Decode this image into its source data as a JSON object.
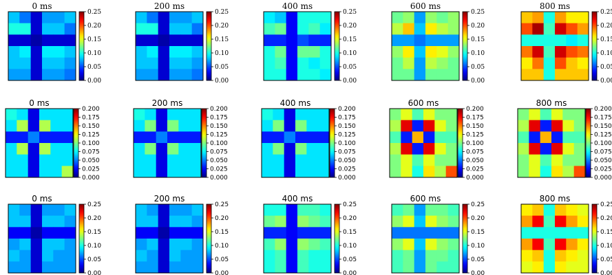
{
  "colormap": "jet",
  "rows": [
    {
      "font": "serif",
      "colorbar_ticks": [
        "0.00",
        "0.05",
        "0.10",
        "0.15",
        "0.20",
        "0.25"
      ],
      "vmax": 0.25,
      "panels": [
        {
          "title": "0 ms",
          "chart_data": {
            "type": "heatmap",
            "grid": [
              [
                0.08,
                0.06,
                0.02,
                0.07,
                0.07,
                0.08
              ],
              [
                0.1,
                0.1,
                0.02,
                0.08,
                0.08,
                0.06
              ],
              [
                0.02,
                0.02,
                0.01,
                0.02,
                0.02,
                0.02
              ],
              [
                0.08,
                0.09,
                0.02,
                0.09,
                0.09,
                0.08
              ],
              [
                0.08,
                0.08,
                0.02,
                0.08,
                0.08,
                0.07
              ],
              [
                0.07,
                0.07,
                0.02,
                0.07,
                0.07,
                0.06
              ]
            ],
            "ylim": [
              0,
              0.25
            ]
          }
        },
        {
          "title": "200 ms",
          "chart_data": {
            "type": "heatmap",
            "grid": [
              [
                0.08,
                0.06,
                0.02,
                0.07,
                0.07,
                0.08
              ],
              [
                0.1,
                0.1,
                0.02,
                0.08,
                0.08,
                0.06
              ],
              [
                0.02,
                0.02,
                0.01,
                0.02,
                0.02,
                0.02
              ],
              [
                0.08,
                0.09,
                0.02,
                0.09,
                0.09,
                0.08
              ],
              [
                0.08,
                0.08,
                0.02,
                0.08,
                0.08,
                0.07
              ],
              [
                0.07,
                0.07,
                0.02,
                0.07,
                0.07,
                0.06
              ]
            ],
            "ylim": [
              0,
              0.25
            ]
          }
        },
        {
          "title": "400 ms",
          "chart_data": {
            "type": "heatmap",
            "grid": [
              [
                0.09,
                0.08,
                0.03,
                0.1,
                0.1,
                0.1
              ],
              [
                0.11,
                0.12,
                0.03,
                0.1,
                0.11,
                0.09
              ],
              [
                0.04,
                0.04,
                0.03,
                0.05,
                0.04,
                0.04
              ],
              [
                0.1,
                0.12,
                0.03,
                0.12,
                0.12,
                0.1
              ],
              [
                0.1,
                0.11,
                0.03,
                0.1,
                0.09,
                0.1
              ],
              [
                0.1,
                0.1,
                0.03,
                0.1,
                0.1,
                0.09
              ]
            ],
            "ylim": [
              0,
              0.25
            ]
          }
        },
        {
          "title": "600 ms",
          "chart_data": {
            "type": "heatmap",
            "grid": [
              [
                0.12,
                0.13,
                0.07,
                0.13,
                0.12,
                0.13
              ],
              [
                0.14,
                0.17,
                0.08,
                0.16,
                0.14,
                0.13
              ],
              [
                0.07,
                0.07,
                0.06,
                0.07,
                0.07,
                0.07
              ],
              [
                0.13,
                0.16,
                0.08,
                0.16,
                0.15,
                0.13
              ],
              [
                0.12,
                0.14,
                0.07,
                0.14,
                0.13,
                0.12
              ],
              [
                0.12,
                0.12,
                0.07,
                0.12,
                0.12,
                0.12
              ]
            ],
            "ylim": [
              0,
              0.25
            ]
          }
        },
        {
          "title": "800 ms",
          "chart_data": {
            "type": "heatmap",
            "grid": [
              [
                0.17,
                0.18,
                0.1,
                0.18,
                0.16,
                0.16
              ],
              [
                0.2,
                0.24,
                0.11,
                0.23,
                0.2,
                0.18
              ],
              [
                0.1,
                0.1,
                0.1,
                0.1,
                0.09,
                0.1
              ],
              [
                0.19,
                0.23,
                0.11,
                0.23,
                0.2,
                0.19
              ],
              [
                0.16,
                0.19,
                0.1,
                0.2,
                0.17,
                0.16
              ],
              [
                0.17,
                0.17,
                0.1,
                0.17,
                0.17,
                0.17
              ]
            ],
            "ylim": [
              0,
              0.25
            ]
          }
        }
      ]
    },
    {
      "font": "sans",
      "colorbar_ticks": [
        "0.000",
        "0.025",
        "0.050",
        "0.075",
        "0.100",
        "0.125",
        "0.150",
        "0.175",
        "0.200"
      ],
      "vmax": 0.2,
      "panels": [
        {
          "title": "0 ms",
          "chart_data": {
            "type": "heatmap",
            "grid": [
              [
                0.08,
                0.07,
                0.02,
                0.07,
                0.07,
                0.07
              ],
              [
                0.07,
                0.11,
                0.02,
                0.11,
                0.07,
                0.07
              ],
              [
                0.03,
                0.03,
                0.05,
                0.03,
                0.03,
                0.03
              ],
              [
                0.07,
                0.11,
                0.02,
                0.11,
                0.07,
                0.07
              ],
              [
                0.07,
                0.07,
                0.02,
                0.07,
                0.07,
                0.07
              ],
              [
                0.07,
                0.07,
                0.02,
                0.07,
                0.07,
                0.11
              ]
            ],
            "ylim": [
              0,
              0.2
            ]
          }
        },
        {
          "title": "200 ms",
          "chart_data": {
            "type": "heatmap",
            "grid": [
              [
                0.08,
                0.07,
                0.02,
                0.07,
                0.07,
                0.07
              ],
              [
                0.07,
                0.1,
                0.02,
                0.1,
                0.07,
                0.07
              ],
              [
                0.03,
                0.03,
                0.05,
                0.03,
                0.03,
                0.03
              ],
              [
                0.07,
                0.1,
                0.02,
                0.1,
                0.07,
                0.07
              ],
              [
                0.07,
                0.07,
                0.02,
                0.07,
                0.07,
                0.07
              ],
              [
                0.07,
                0.07,
                0.02,
                0.07,
                0.07,
                0.07
              ]
            ],
            "ylim": [
              0,
              0.2
            ]
          }
        },
        {
          "title": "400 ms",
          "chart_data": {
            "type": "heatmap",
            "grid": [
              [
                0.08,
                0.07,
                0.02,
                0.07,
                0.07,
                0.07
              ],
              [
                0.07,
                0.1,
                0.02,
                0.1,
                0.07,
                0.07
              ],
              [
                0.03,
                0.03,
                0.05,
                0.03,
                0.03,
                0.03
              ],
              [
                0.07,
                0.1,
                0.02,
                0.1,
                0.07,
                0.07
              ],
              [
                0.07,
                0.07,
                0.02,
                0.07,
                0.07,
                0.07
              ],
              [
                0.07,
                0.07,
                0.02,
                0.07,
                0.07,
                0.07
              ]
            ],
            "ylim": [
              0,
              0.2
            ]
          }
        },
        {
          "title": "600 ms",
          "chart_data": {
            "type": "heatmap",
            "grid": [
              [
                0.1,
                0.12,
                0.09,
                0.12,
                0.1,
                0.1
              ],
              [
                0.11,
                0.18,
                0.03,
                0.18,
                0.12,
                0.1
              ],
              [
                0.09,
                0.03,
                0.14,
                0.03,
                0.09,
                0.09
              ],
              [
                0.11,
                0.18,
                0.03,
                0.18,
                0.12,
                0.1
              ],
              [
                0.1,
                0.12,
                0.09,
                0.12,
                0.1,
                0.1
              ],
              [
                0.1,
                0.12,
                0.08,
                0.13,
                0.11,
                0.16
              ]
            ],
            "ylim": [
              0,
              0.2
            ]
          }
        },
        {
          "title": "800 ms",
          "chart_data": {
            "type": "heatmap",
            "grid": [
              [
                0.1,
                0.12,
                0.09,
                0.12,
                0.1,
                0.1
              ],
              [
                0.11,
                0.18,
                0.03,
                0.18,
                0.12,
                0.1
              ],
              [
                0.09,
                0.03,
                0.14,
                0.03,
                0.09,
                0.09
              ],
              [
                0.11,
                0.18,
                0.03,
                0.18,
                0.12,
                0.1
              ],
              [
                0.1,
                0.12,
                0.09,
                0.12,
                0.1,
                0.1
              ],
              [
                0.1,
                0.12,
                0.08,
                0.13,
                0.11,
                0.16
              ]
            ],
            "ylim": [
              0,
              0.2
            ]
          }
        }
      ]
    },
    {
      "font": "sans",
      "colorbar_ticks": [
        "0.00",
        "0.05",
        "0.10",
        "0.15",
        "0.20",
        "0.25"
      ],
      "vmax": 0.25,
      "panels": [
        {
          "title": "0 ms",
          "chart_data": {
            "type": "heatmap",
            "grid": [
              [
                0.08,
                0.07,
                0.02,
                0.07,
                0.07,
                0.08
              ],
              [
                0.08,
                0.08,
                0.02,
                0.08,
                0.08,
                0.07
              ],
              [
                0.03,
                0.03,
                0.01,
                0.03,
                0.03,
                0.03
              ],
              [
                0.07,
                0.08,
                0.02,
                0.08,
                0.08,
                0.07
              ],
              [
                0.08,
                0.07,
                0.02,
                0.08,
                0.07,
                0.07
              ],
              [
                0.07,
                0.07,
                0.02,
                0.07,
                0.07,
                0.07
              ]
            ],
            "ylim": [
              0,
              0.25
            ]
          }
        },
        {
          "title": "200 ms",
          "chart_data": {
            "type": "heatmap",
            "grid": [
              [
                0.08,
                0.07,
                0.02,
                0.07,
                0.07,
                0.08
              ],
              [
                0.08,
                0.08,
                0.02,
                0.08,
                0.08,
                0.07
              ],
              [
                0.03,
                0.03,
                0.01,
                0.03,
                0.03,
                0.03
              ],
              [
                0.07,
                0.08,
                0.02,
                0.08,
                0.08,
                0.07
              ],
              [
                0.08,
                0.07,
                0.02,
                0.08,
                0.07,
                0.07
              ],
              [
                0.07,
                0.07,
                0.02,
                0.07,
                0.07,
                0.07
              ]
            ],
            "ylim": [
              0,
              0.25
            ]
          }
        },
        {
          "title": "400 ms",
          "chart_data": {
            "type": "heatmap",
            "grid": [
              [
                0.1,
                0.1,
                0.03,
                0.11,
                0.11,
                0.1
              ],
              [
                0.12,
                0.13,
                0.03,
                0.13,
                0.12,
                0.11
              ],
              [
                0.04,
                0.04,
                0.03,
                0.04,
                0.04,
                0.04
              ],
              [
                0.11,
                0.13,
                0.03,
                0.13,
                0.12,
                0.11
              ],
              [
                0.1,
                0.11,
                0.03,
                0.11,
                0.1,
                0.1
              ],
              [
                0.1,
                0.11,
                0.03,
                0.11,
                0.1,
                0.1
              ]
            ],
            "ylim": [
              0,
              0.25
            ]
          }
        },
        {
          "title": "600 ms",
          "chart_data": {
            "type": "heatmap",
            "grid": [
              [
                0.11,
                0.12,
                0.07,
                0.12,
                0.12,
                0.11
              ],
              [
                0.13,
                0.15,
                0.08,
                0.15,
                0.13,
                0.12
              ],
              [
                0.06,
                0.06,
                0.06,
                0.06,
                0.06,
                0.06
              ],
              [
                0.13,
                0.15,
                0.08,
                0.15,
                0.13,
                0.12
              ],
              [
                0.11,
                0.12,
                0.07,
                0.12,
                0.12,
                0.11
              ],
              [
                0.11,
                0.12,
                0.07,
                0.12,
                0.11,
                0.11
              ]
            ],
            "ylim": [
              0,
              0.25
            ]
          }
        },
        {
          "title": "800 ms",
          "chart_data": {
            "type": "heatmap",
            "grid": [
              [
                0.16,
                0.17,
                0.1,
                0.17,
                0.16,
                0.15
              ],
              [
                0.18,
                0.22,
                0.11,
                0.22,
                0.18,
                0.16
              ],
              [
                0.1,
                0.1,
                0.1,
                0.1,
                0.1,
                0.1
              ],
              [
                0.18,
                0.22,
                0.11,
                0.22,
                0.18,
                0.16
              ],
              [
                0.16,
                0.17,
                0.1,
                0.17,
                0.16,
                0.15
              ],
              [
                0.15,
                0.16,
                0.1,
                0.16,
                0.15,
                0.15
              ]
            ],
            "ylim": [
              0,
              0.25
            ]
          }
        }
      ]
    }
  ]
}
